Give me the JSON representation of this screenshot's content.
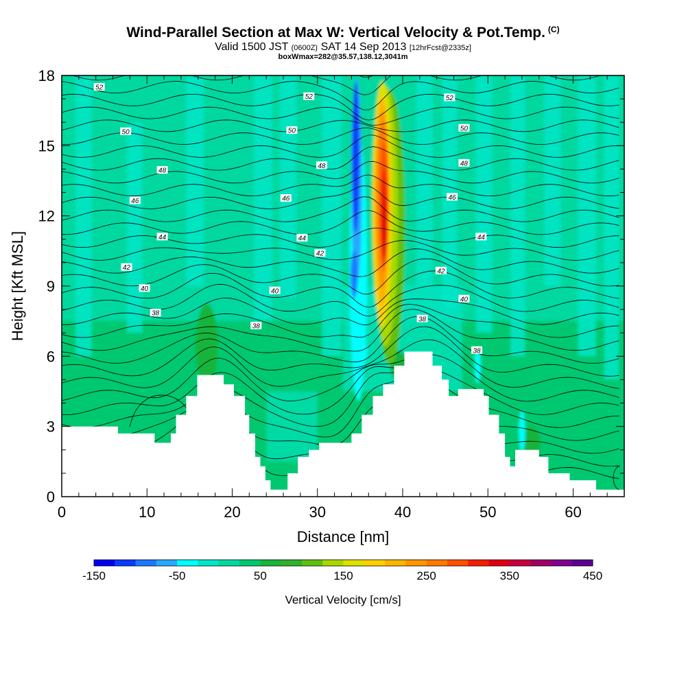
{
  "header": {
    "title": "Wind-Parallel Section at Max W: Vertical Velocity & Pot.Temp.",
    "title_suffix": "(C)",
    "valid_pre": "Valid 1500 JST",
    "valid_z": "(0600Z)",
    "valid_date": "SAT 14 Sep 2013",
    "valid_fcst": "[12hrFcst@2335z]",
    "boxinfo": "boxWmax=282@35.57,138.12,3041m"
  },
  "chart_data": {
    "type": "heatmap",
    "xlabel": "Distance [nm]",
    "ylabel": "Height [Kft MSL]",
    "xlim": [
      0,
      66
    ],
    "ylim": [
      0,
      18
    ],
    "x_ticks": [
      0,
      10,
      20,
      30,
      40,
      50,
      60
    ],
    "y_ticks": [
      0,
      3,
      6,
      9,
      12,
      15,
      18
    ],
    "colorbar": {
      "title": "Vertical Velocity [cm/s]",
      "range": [
        -150,
        450
      ],
      "tick_labels": [
        "-150",
        "-50",
        "50",
        "150",
        "250",
        "350",
        "450"
      ],
      "colors": [
        "#0000f0",
        "#0a3cff",
        "#1e78ff",
        "#28a8ff",
        "#00ffff",
        "#00e6c8",
        "#00d8a0",
        "#00c870",
        "#18b43a",
        "#30b22a",
        "#60c010",
        "#a8d800",
        "#e0e000",
        "#ffd000",
        "#ffb400",
        "#ff9600",
        "#ff7800",
        "#ff5000",
        "#f02000",
        "#e00010",
        "#c8003c",
        "#a00064",
        "#800090",
        "#5a0090"
      ]
    },
    "theta_contour_labels": [
      {
        "value": "52",
        "x": 4.4,
        "y": 17.5
      },
      {
        "value": "52",
        "x": 29.0,
        "y": 17.1
      },
      {
        "value": "52",
        "x": 45.5,
        "y": 17.05
      },
      {
        "value": "50",
        "x": 7.5,
        "y": 15.6
      },
      {
        "value": "50",
        "x": 27.0,
        "y": 15.65
      },
      {
        "value": "50",
        "x": 47.2,
        "y": 15.75
      },
      {
        "value": "48",
        "x": 11.8,
        "y": 13.95
      },
      {
        "value": "48",
        "x": 30.5,
        "y": 14.15
      },
      {
        "value": "48",
        "x": 47.2,
        "y": 14.25
      },
      {
        "value": "46",
        "x": 8.6,
        "y": 12.65
      },
      {
        "value": "46",
        "x": 26.3,
        "y": 12.75
      },
      {
        "value": "46",
        "x": 45.8,
        "y": 12.8
      },
      {
        "value": "44",
        "x": 11.8,
        "y": 11.1
      },
      {
        "value": "44",
        "x": 28.2,
        "y": 11.05
      },
      {
        "value": "44",
        "x": 49.2,
        "y": 11.1
      },
      {
        "value": "42",
        "x": 7.6,
        "y": 9.8
      },
      {
        "value": "42",
        "x": 30.3,
        "y": 10.4
      },
      {
        "value": "42",
        "x": 44.5,
        "y": 9.65
      },
      {
        "value": "40",
        "x": 9.7,
        "y": 8.9
      },
      {
        "value": "40",
        "x": 25.0,
        "y": 8.8
      },
      {
        "value": "40",
        "x": 47.2,
        "y": 8.45
      },
      {
        "value": "38",
        "x": 11.0,
        "y": 7.85
      },
      {
        "value": "38",
        "x": 22.8,
        "y": 7.3
      },
      {
        "value": "38",
        "x": 42.3,
        "y": 7.6
      },
      {
        "value": "38",
        "x": 48.7,
        "y": 6.25
      }
    ],
    "terrain": [
      [
        0,
        3.0
      ],
      [
        6.6,
        3.0
      ],
      [
        6.6,
        2.7
      ],
      [
        10.9,
        2.7
      ],
      [
        10.9,
        2.3
      ],
      [
        12.8,
        2.3
      ],
      [
        12.8,
        2.7
      ],
      [
        13.4,
        2.7
      ],
      [
        13.4,
        3.5
      ],
      [
        14.6,
        3.5
      ],
      [
        14.6,
        4.3
      ],
      [
        15.9,
        4.3
      ],
      [
        15.9,
        5.2
      ],
      [
        18.5,
        5.2
      ],
      [
        19.0,
        5.2
      ],
      [
        19.0,
        4.8
      ],
      [
        20.2,
        4.8
      ],
      [
        20.2,
        4.3
      ],
      [
        21.5,
        4.3
      ],
      [
        21.5,
        3.5
      ],
      [
        22.0,
        3.5
      ],
      [
        22.0,
        2.7
      ],
      [
        22.7,
        2.7
      ],
      [
        22.7,
        1.7
      ],
      [
        23.3,
        1.7
      ],
      [
        23.3,
        1.3
      ],
      [
        23.9,
        1.3
      ],
      [
        23.9,
        0.7
      ],
      [
        24.5,
        0.7
      ],
      [
        24.5,
        0.3
      ],
      [
        26.5,
        0.3
      ],
      [
        26.5,
        1.0
      ],
      [
        27.7,
        1.0
      ],
      [
        27.7,
        1.7
      ],
      [
        29.0,
        1.7
      ],
      [
        29.0,
        2.0
      ],
      [
        30.2,
        2.0
      ],
      [
        30.2,
        2.3
      ],
      [
        34.0,
        2.3
      ],
      [
        34.0,
        2.7
      ],
      [
        35.2,
        2.7
      ],
      [
        35.2,
        3.5
      ],
      [
        36.5,
        3.5
      ],
      [
        36.5,
        4.3
      ],
      [
        37.7,
        4.3
      ],
      [
        37.7,
        4.8
      ],
      [
        39.0,
        4.8
      ],
      [
        39.0,
        5.6
      ],
      [
        40.2,
        5.6
      ],
      [
        40.2,
        6.2
      ],
      [
        43.5,
        6.2
      ],
      [
        43.5,
        5.6
      ],
      [
        44.6,
        5.6
      ],
      [
        44.6,
        5.0
      ],
      [
        45.4,
        5.0
      ],
      [
        45.4,
        4.3
      ],
      [
        46.5,
        4.3
      ],
      [
        46.5,
        4.6
      ],
      [
        49.5,
        4.6
      ],
      [
        49.5,
        4.3
      ],
      [
        50.1,
        4.3
      ],
      [
        50.1,
        3.5
      ],
      [
        51.3,
        3.5
      ],
      [
        51.3,
        2.7
      ],
      [
        52.0,
        2.7
      ],
      [
        52.0,
        1.7
      ],
      [
        52.6,
        1.7
      ],
      [
        52.6,
        1.3
      ],
      [
        53.2,
        1.3
      ],
      [
        53.2,
        2.0
      ],
      [
        56.0,
        2.0
      ],
      [
        56.0,
        1.7
      ],
      [
        57.1,
        1.7
      ],
      [
        57.1,
        1.0
      ],
      [
        59.6,
        1.0
      ],
      [
        59.6,
        0.7
      ],
      [
        62.7,
        0.7
      ],
      [
        62.7,
        0.3
      ],
      [
        66.0,
        0.3
      ],
      [
        66.0,
        0
      ]
    ]
  }
}
